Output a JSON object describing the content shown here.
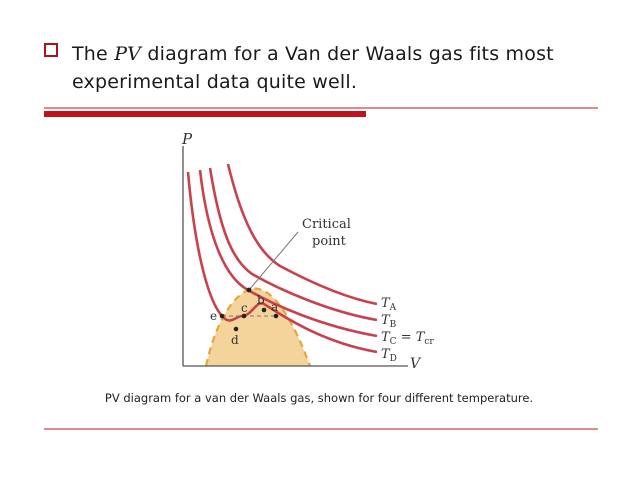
{
  "slide": {
    "bullet_prefix": "The ",
    "bullet_pv": "PV",
    "bullet_rest": " diagram for a Van der Waals gas fits most experimental data quite well.",
    "caption": "PV diagram for a van der Waals gas, shown for four different temperature."
  },
  "diagram": {
    "axis_p": "P",
    "axis_v": "V",
    "critical_label_1": "Critical",
    "critical_label_2": "point",
    "point_a": "a",
    "point_b": "b",
    "point_c": "c",
    "point_d": "d",
    "point_e": "e",
    "isotherm_a": "T",
    "isotherm_a_sub": "A",
    "isotherm_b": "T",
    "isotherm_b_sub": "B",
    "isotherm_c": "T",
    "isotherm_c_sub": "C",
    "isotherm_c_eq": " = T",
    "isotherm_c_eq_sub": "cr",
    "isotherm_d": "T",
    "isotherm_d_sub": "D",
    "colors": {
      "curve": "#c8414d",
      "region_fill": "#f5d49c",
      "region_border": "#e8a53a",
      "bullet": "#a8141a",
      "rule_red": "#c0141c"
    }
  }
}
